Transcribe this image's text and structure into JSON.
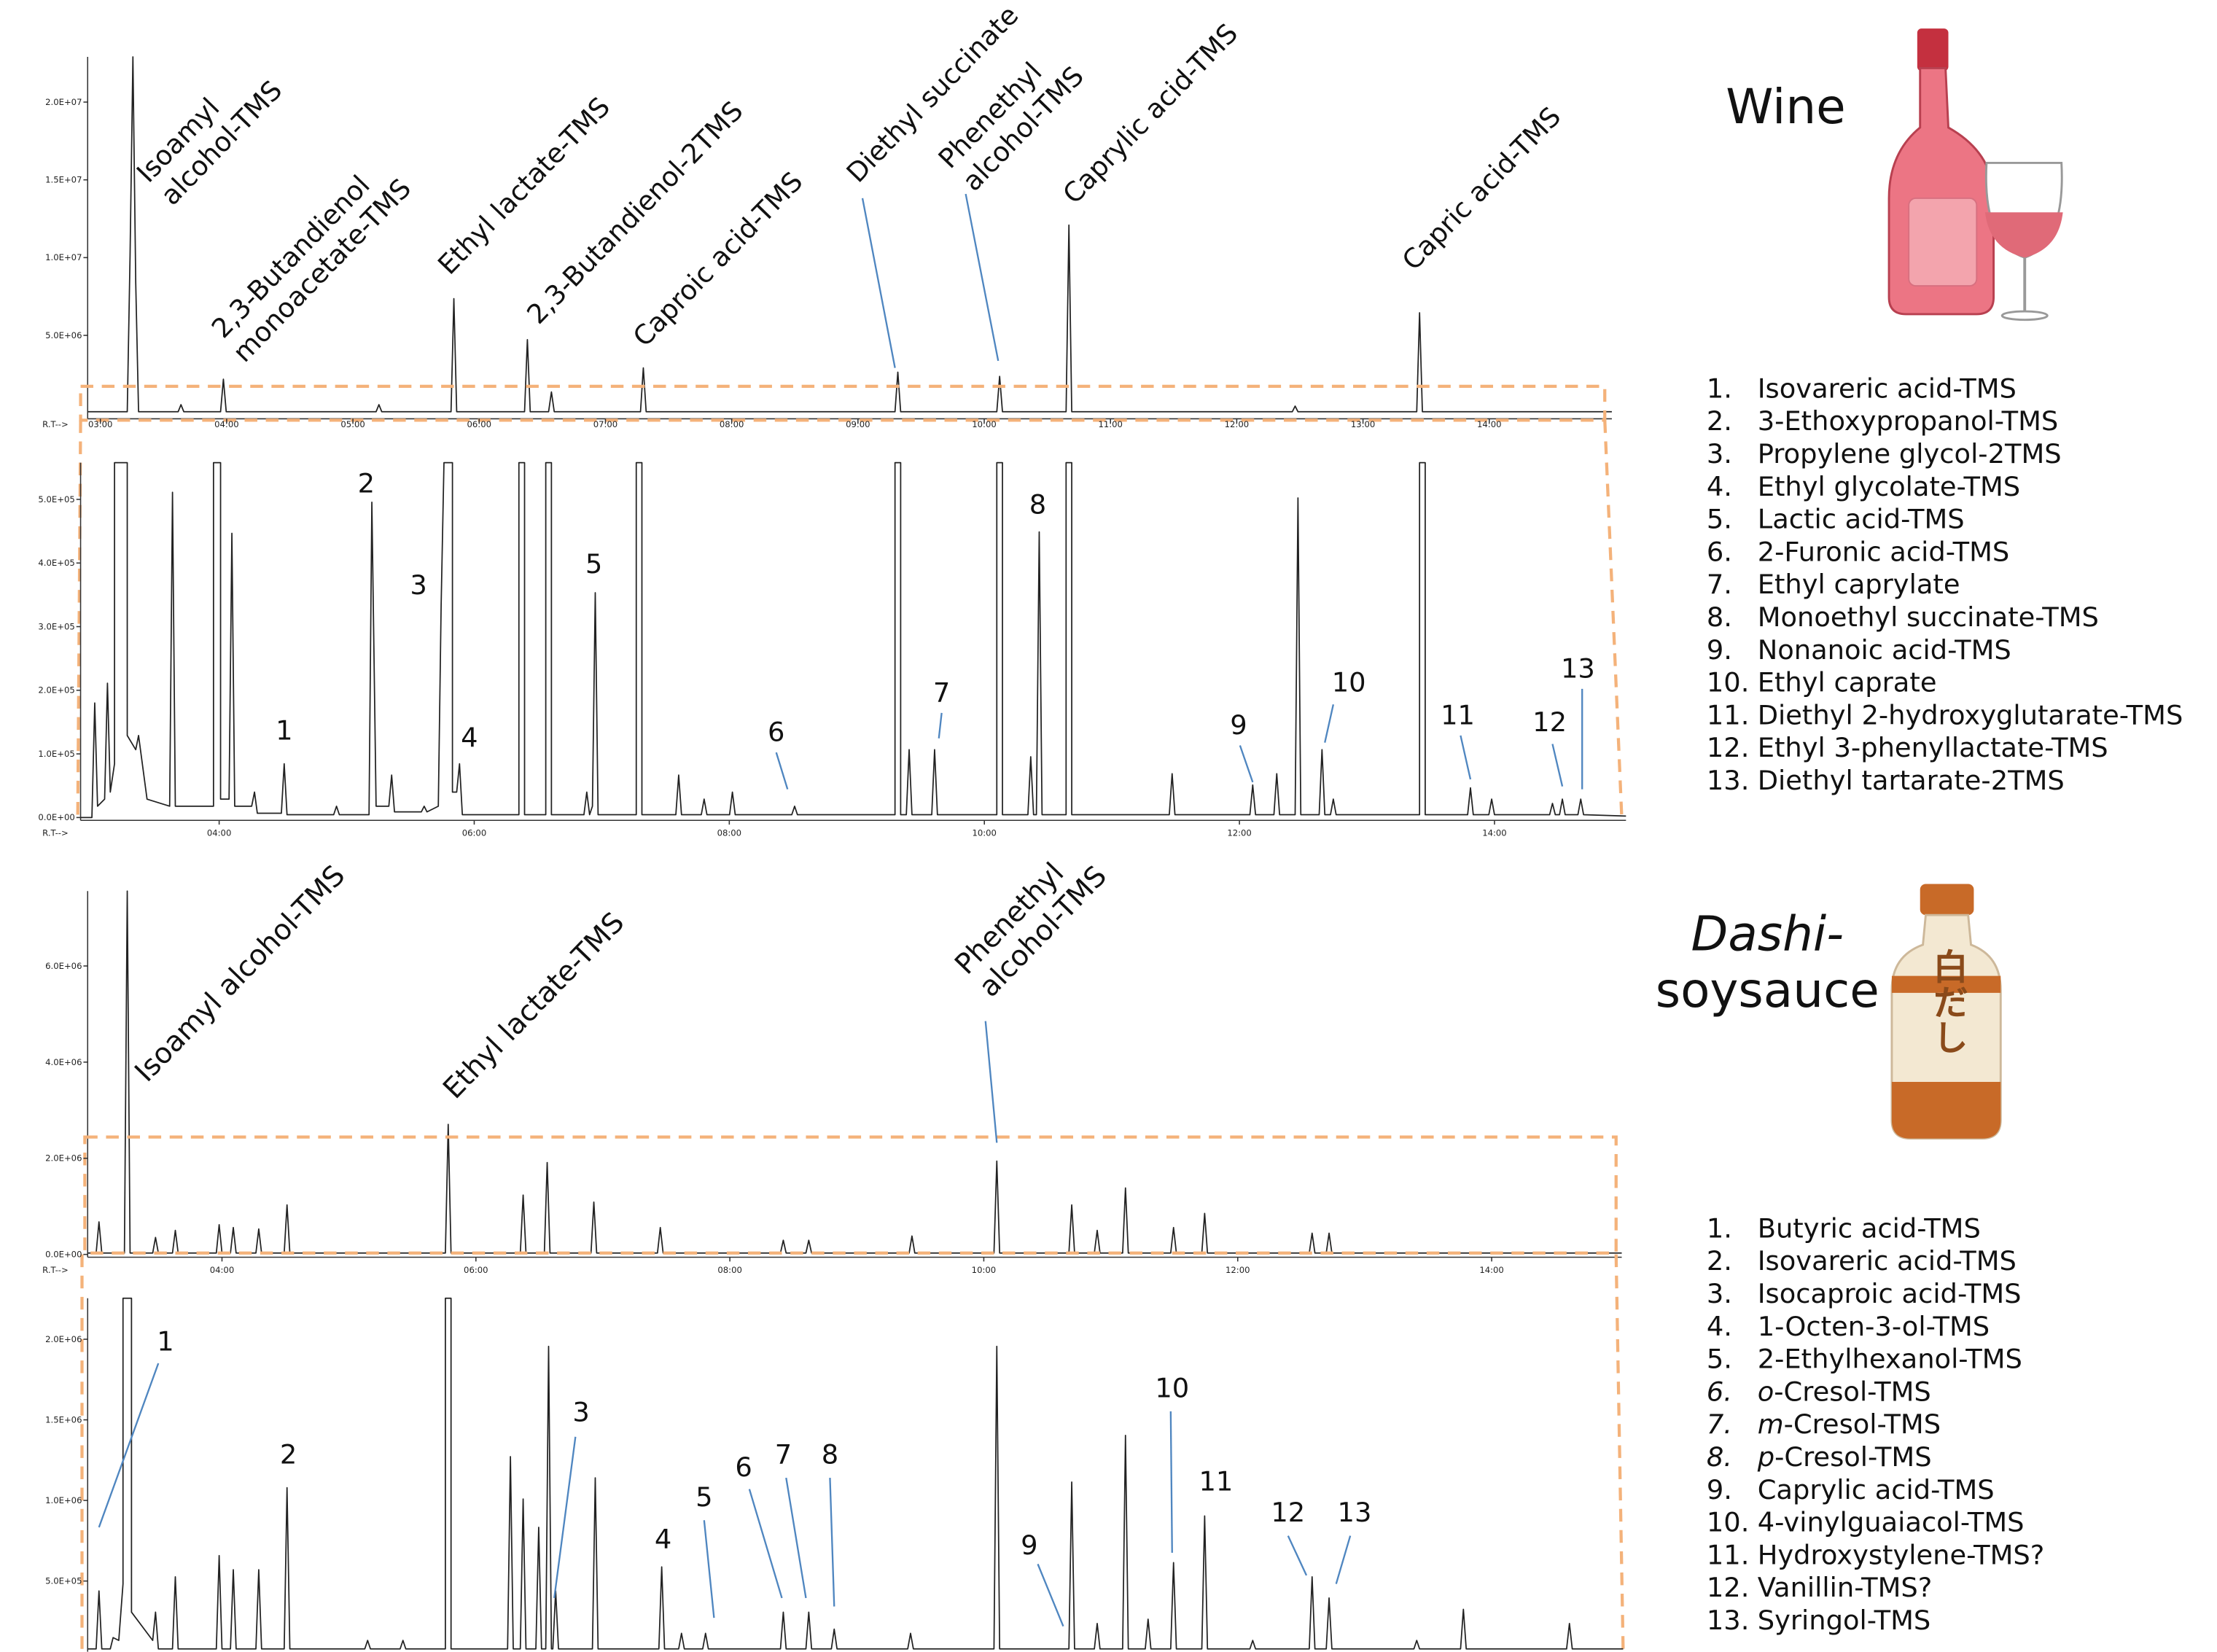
{
  "wine": {
    "title": "Wine",
    "overview": {
      "yticks": [
        "2.0E+07",
        "1.5E+07",
        "1.0E+07",
        "5.0E+06"
      ],
      "xticks": [
        "03:00",
        "04:00",
        "05:00",
        "06:00",
        "07:00",
        "08:00",
        "09:00",
        "10:00",
        "11:00",
        "12:00",
        "13:00",
        "14:00"
      ],
      "x_axis_label": "R.T-->",
      "annotations": [
        {
          "lines": [
            "Isoamyl",
            "alcohol-TMS"
          ]
        },
        {
          "lines": [
            "2,3-Butandienol",
            "monoacetate-TMS"
          ]
        },
        {
          "lines": [
            "Ethyl lactate-TMS"
          ]
        },
        {
          "lines": [
            "2,3-Butandienol-2TMS"
          ]
        },
        {
          "lines": [
            "Caproic acid-TMS"
          ]
        },
        {
          "lines": [
            "Diethyl succinate"
          ]
        },
        {
          "lines": [
            "Phenethyl",
            "alcohol-TMS"
          ]
        },
        {
          "lines": [
            "Caprylic acid-TMS"
          ]
        },
        {
          "lines": [
            "Capric acid-TMS"
          ]
        }
      ]
    },
    "zoom": {
      "yticks": [
        "0.0E+00",
        "1.0E+05",
        "2.0E+05",
        "3.0E+05",
        "4.0E+05",
        "5.0E+05"
      ],
      "xticks": [
        "04:00",
        "06:00",
        "08:00",
        "10:00",
        "12:00",
        "14:00"
      ],
      "x_axis_label": "R.T-->",
      "peak_labels": [
        "1",
        "2",
        "3",
        "4",
        "5",
        "6",
        "7",
        "8",
        "9",
        "10",
        "11",
        "12",
        "13"
      ]
    },
    "compounds": [
      {
        "number": "1.",
        "name": "Isovareric acid-TMS"
      },
      {
        "number": "2.",
        "name": "3-Ethoxypropanol-TMS"
      },
      {
        "number": "3.",
        "name": "Propylene glycol-2TMS"
      },
      {
        "number": "4.",
        "name": "Ethyl glycolate-TMS"
      },
      {
        "number": "5.",
        "name": "Lactic acid-TMS"
      },
      {
        "number": "6.",
        "name": "2-Furonic acid-TMS"
      },
      {
        "number": "7.",
        "name": "Ethyl caprylate"
      },
      {
        "number": "8.",
        "name": "Monoethyl succinate-TMS"
      },
      {
        "number": "9.",
        "name": "Nonanoic acid-TMS"
      },
      {
        "number": "10.",
        "name": "Ethyl caprate"
      },
      {
        "number": "11.",
        "name": "Diethyl 2-hydroxyglutarate-TMS"
      },
      {
        "number": "12.",
        "name": "Ethyl 3-phenyllactate-TMS"
      },
      {
        "number": "13.",
        "name": "Diethyl tartarate-2TMS"
      }
    ]
  },
  "dashi": {
    "title": {
      "italic": "Dashi-",
      "plain": "soysauce"
    },
    "bottle_label": "白だし",
    "overview": {
      "yticks": [
        "0.0E+00",
        "2.0E+06",
        "4.0E+06",
        "6.0E+06"
      ],
      "xticks": [
        "04:00",
        "06:00",
        "08:00",
        "10:00",
        "12:00",
        "14:00"
      ],
      "x_axis_label": "R.T-->",
      "annotations": [
        {
          "lines": [
            "Isoamyl alcohol-TMS"
          ]
        },
        {
          "lines": [
            "Ethyl lactate-TMS"
          ]
        },
        {
          "lines": [
            "Phenethyl",
            "alcohol-TMS"
          ]
        }
      ]
    },
    "zoom": {
      "yticks": [
        "2.0E+06",
        "1.5E+06",
        "1.0E+06",
        "5.0E+05"
      ],
      "peak_labels": [
        "1",
        "2",
        "3",
        "4",
        "5",
        "6",
        "7",
        "8",
        "9",
        "10",
        "11",
        "12",
        "13"
      ]
    },
    "compounds": [
      {
        "number": "1.",
        "name": "Butyric acid-TMS"
      },
      {
        "number": "2.",
        "name": "Isovareric acid-TMS"
      },
      {
        "number": "3.",
        "name": "Isocaproic acid-TMS"
      },
      {
        "number": "4.",
        "name": "1-Octen-3-ol-TMS"
      },
      {
        "number": "5.",
        "name": "2-Ethylhexanol-TMS"
      },
      {
        "number": "6.",
        "prefix": "o",
        "name": "-Cresol-TMS"
      },
      {
        "number": "7.",
        "prefix": "m",
        "name": "-Cresol-TMS"
      },
      {
        "number": "8.",
        "prefix": "p",
        "name": "-Cresol-TMS"
      },
      {
        "number": "9.",
        "name": "Caprylic acid-TMS"
      },
      {
        "number": "10.",
        "name": "4-vinylguaiacol-TMS"
      },
      {
        "number": "11.",
        "name": "Hydroxystylene-TMS?"
      },
      {
        "number": "12.",
        "name": "Vanillin-TMS?"
      },
      {
        "number": "13.",
        "name": "Syringol-TMS"
      }
    ]
  }
}
